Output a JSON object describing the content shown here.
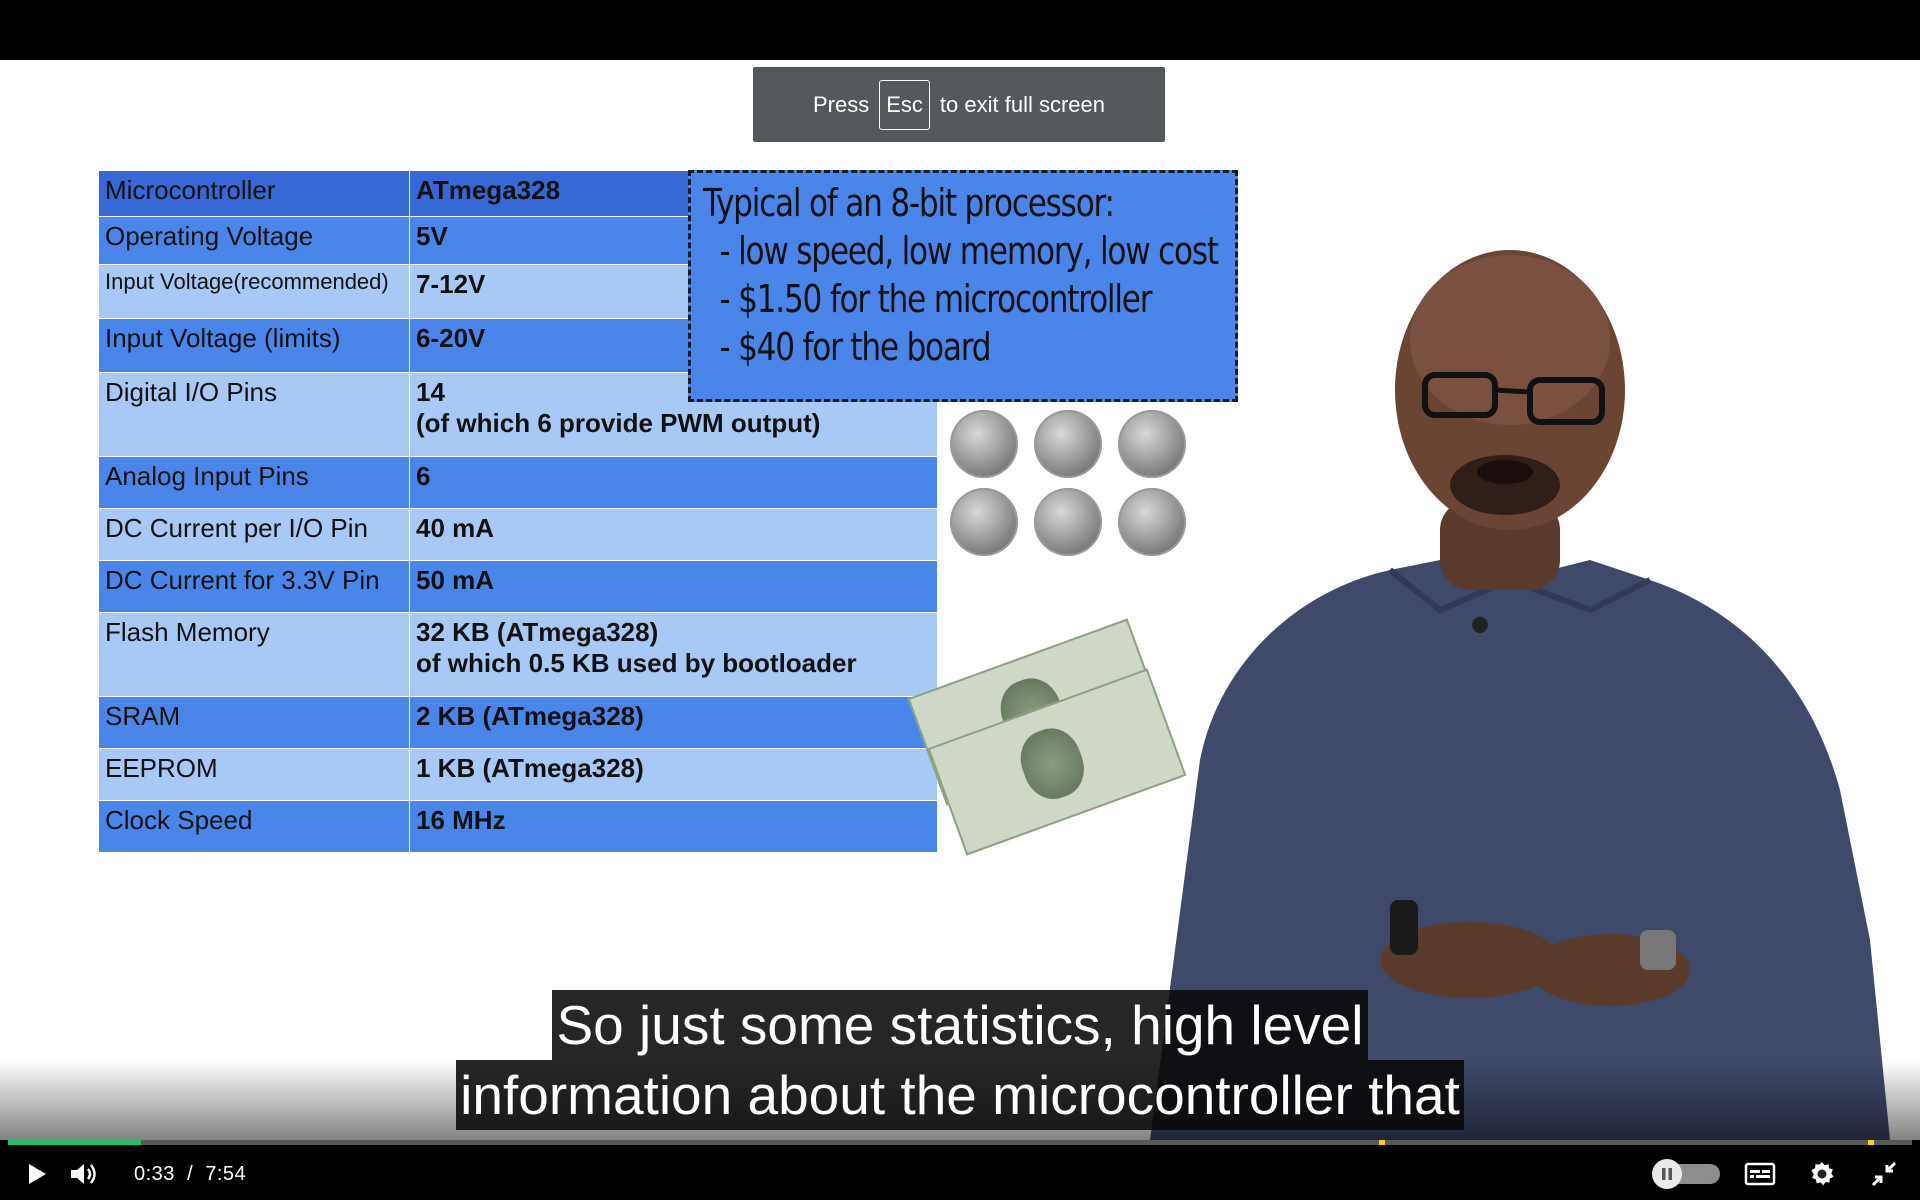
{
  "toast": {
    "prefix": "Press",
    "key": "Esc",
    "suffix": "to exit full screen"
  },
  "spec_table": [
    {
      "key": "Microcontroller",
      "value": "ATmega328",
      "style": "head"
    },
    {
      "key": "Operating Voltage",
      "value": "5V",
      "style": "dark"
    },
    {
      "key": "Input Voltage(recommended)",
      "value": "7-12V",
      "style": "light",
      "small": true
    },
    {
      "key": "Input Voltage (limits)",
      "value": "6-20V",
      "style": "dark"
    },
    {
      "key": "Digital I/O Pins",
      "value": "14",
      "value2": "(of which 6 provide PWM output)",
      "style": "light"
    },
    {
      "key": "Analog Input Pins",
      "value": "6",
      "style": "dark"
    },
    {
      "key": "DC Current per I/O Pin",
      "value": "40 mA",
      "style": "light"
    },
    {
      "key": "DC Current for 3.3V Pin",
      "value": "50 mA",
      "style": "dark"
    },
    {
      "key": "Flash Memory",
      "value": "32 KB (ATmega328)",
      "value2": "of which 0.5 KB used by bootloader",
      "style": "light"
    },
    {
      "key": "SRAM",
      "value": "2 KB (ATmega328)",
      "style": "dark"
    },
    {
      "key": "EEPROM",
      "value": "1 KB (ATmega328)",
      "style": "light"
    },
    {
      "key": "Clock Speed",
      "value": "16 MHz",
      "style": "dark"
    }
  ],
  "callout": {
    "title": "Typical of an 8-bit processor:",
    "bullets": [
      "- low speed, low memory, low cost",
      "- $1.50 for the microcontroller",
      "- $40 for the board"
    ]
  },
  "captions": {
    "line1": "So just some statistics, high level",
    "line2": "information about the microcontroller that"
  },
  "player": {
    "current_time": "0:33",
    "separator": "/",
    "duration": "7:54",
    "progress_fraction": 0.0696,
    "marker_fractions": [
      0.72,
      0.977
    ],
    "colors": {
      "played": "#1ec06a",
      "marker": "#ffd400"
    },
    "icons": [
      "play-icon",
      "volume-icon",
      "autoplay-toggle",
      "captions-icon",
      "settings-icon",
      "exit-fullscreen-icon"
    ]
  }
}
